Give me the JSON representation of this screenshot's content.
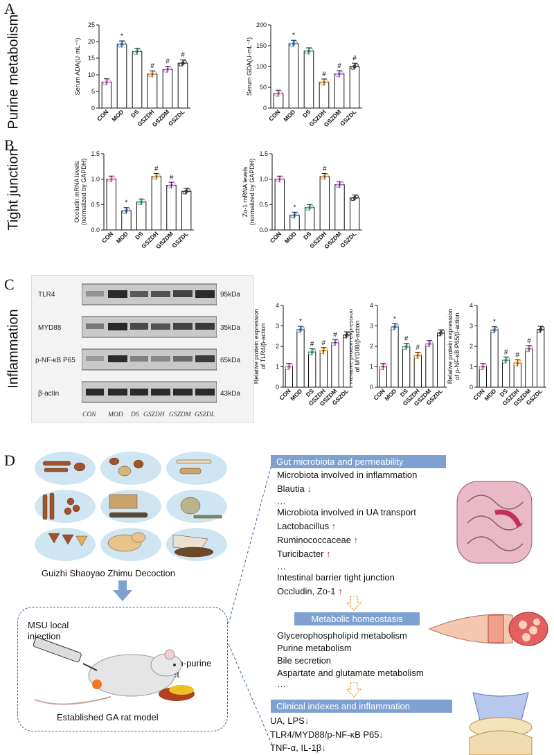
{
  "panels": {
    "A": {
      "letter": "A",
      "section": "Purine metabolism"
    },
    "B": {
      "letter": "B",
      "section": "Tight junction"
    },
    "C": {
      "letter": "C",
      "section": "Inflammation"
    },
    "D": {
      "letter": "D"
    }
  },
  "groups": [
    "CON",
    "MOD",
    "DS",
    "GSZDH",
    "GSZDM",
    "GSZDL"
  ],
  "chart_data": [
    {
      "id": "ada",
      "type": "bar",
      "ylabel": "Serum ADA(U·mL⁻¹)",
      "ylim": [
        0,
        25
      ],
      "ticks": [
        0,
        5,
        10,
        15,
        20,
        25
      ],
      "categories": [
        "CON",
        "MOD",
        "DS",
        "GSZDH",
        "GSZDM",
        "GSZDL"
      ],
      "values": [
        7.8,
        19.2,
        17.0,
        10.2,
        11.6,
        13.5
      ],
      "annotations": [
        "",
        "*",
        "",
        "#",
        "#",
        "#"
      ],
      "colors": [
        "#e880d0",
        "#4a90d9",
        "#4fb59a",
        "#f0a030",
        "#c080e0",
        "#333333"
      ]
    },
    {
      "id": "gda",
      "type": "bar",
      "ylabel": "Serum GDA(U·mL⁻¹)",
      "ylim": [
        0,
        200
      ],
      "ticks": [
        0,
        50,
        100,
        150,
        200
      ],
      "categories": [
        "CON",
        "MOD",
        "DS",
        "GSZDH",
        "GSZDM",
        "GSZDL"
      ],
      "values": [
        35,
        155,
        137,
        62,
        82,
        100
      ],
      "annotations": [
        "",
        "*",
        "",
        "#",
        "#",
        "#"
      ],
      "colors": [
        "#e880d0",
        "#4a90d9",
        "#4fb59a",
        "#f0a030",
        "#c080e0",
        "#333333"
      ]
    },
    {
      "id": "occludin",
      "type": "bar",
      "ylabel": "Occludin mRNA levels",
      "ylabel2": "(normalized by GAPDH)",
      "ylim": [
        0,
        1.5
      ],
      "ticks": [
        0.0,
        0.5,
        1.0,
        1.5
      ],
      "categories": [
        "CON",
        "MOD",
        "DS",
        "GSZDH",
        "GSZDM",
        "GSZDL"
      ],
      "values": [
        1.0,
        0.38,
        0.55,
        1.05,
        0.88,
        0.76
      ],
      "annotations": [
        "",
        "*",
        "",
        "#",
        "#",
        ""
      ],
      "colors": [
        "#e880d0",
        "#4a90d9",
        "#4fb59a",
        "#f0a030",
        "#c080e0",
        "#333333"
      ]
    },
    {
      "id": "zo1",
      "type": "bar",
      "ylabel": "Zo-1 mRNA levels",
      "ylabel2": "(normalized by GAPDH)",
      "ylim": [
        0,
        1.5
      ],
      "ticks": [
        0.0,
        0.5,
        1.0,
        1.5
      ],
      "categories": [
        "CON",
        "MOD",
        "DS",
        "GSZDH",
        "GSZDM",
        "GSZDL"
      ],
      "values": [
        1.0,
        0.29,
        0.44,
        1.05,
        0.89,
        0.63
      ],
      "annotations": [
        "",
        "*",
        "",
        "#",
        "",
        ""
      ],
      "colors": [
        "#e880d0",
        "#4a90d9",
        "#4fb59a",
        "#f0a030",
        "#c080e0",
        "#333333"
      ]
    },
    {
      "id": "tlr4",
      "type": "bar",
      "ylabel": "Relative protein expression",
      "ylabel2": "of TLR4/β-action",
      "ylim": [
        0,
        4
      ],
      "ticks": [
        0,
        1,
        2,
        3,
        4
      ],
      "categories": [
        "CON",
        "MOD",
        "DS",
        "GSZDH",
        "GSZDM",
        "GSZDL"
      ],
      "values": [
        1.0,
        2.82,
        1.72,
        1.78,
        2.18,
        2.55
      ],
      "annotations": [
        "",
        "*",
        "#",
        "#",
        "#",
        ""
      ],
      "colors": [
        "#e880d0",
        "#4a90d9",
        "#4fb59a",
        "#f0a030",
        "#c080e0",
        "#333333"
      ]
    },
    {
      "id": "myd88",
      "type": "bar",
      "ylabel": "Relative protein expression",
      "ylabel2": "of MYD88/β-action",
      "ylim": [
        0,
        4
      ],
      "ticks": [
        0,
        1,
        2,
        3,
        4
      ],
      "categories": [
        "CON",
        "MOD",
        "DS",
        "GSZDH",
        "GSZDM",
        "GSZDL"
      ],
      "values": [
        1.0,
        2.95,
        1.98,
        1.55,
        2.12,
        2.65
      ],
      "annotations": [
        "",
        "*",
        "#",
        "#",
        "",
        ""
      ],
      "colors": [
        "#e880d0",
        "#4a90d9",
        "#4fb59a",
        "#f0a030",
        "#c080e0",
        "#333333"
      ]
    },
    {
      "id": "p65",
      "type": "bar",
      "ylabel": "Relative protein expression",
      "ylabel2": "of p-NF-κB P65/β-action",
      "ylim": [
        0,
        4
      ],
      "ticks": [
        0,
        1,
        2,
        3,
        4
      ],
      "categories": [
        "CON",
        "MOD",
        "DS",
        "GSZDH",
        "GSZDM",
        "GSZDL"
      ],
      "values": [
        1.0,
        2.8,
        1.32,
        1.18,
        1.88,
        2.82
      ],
      "annotations": [
        "",
        "*",
        "#",
        "#",
        "#",
        ""
      ],
      "colors": [
        "#e880d0",
        "#4a90d9",
        "#4fb59a",
        "#f0a030",
        "#c080e0",
        "#333333"
      ]
    }
  ],
  "blot": {
    "proteins": [
      "TLR4",
      "MYD88",
      "p-NF-κB P65",
      "β-actin"
    ],
    "sizes": [
      "95kDa",
      "35kDa",
      "65kDa",
      "43kDa"
    ],
    "lanes": [
      "CON",
      "MOD",
      "DS",
      "GSZDH",
      "GSZDM",
      "GSZDL"
    ]
  },
  "diagram": {
    "decoction": "Guizhi Shaoyao Zhimu Decoction",
    "msu": "MSU local",
    "msu2": "injection",
    "diet": "High-purine",
    "diet2": "diet",
    "model": "Established GA rat model",
    "box1": "Gut microbiota and permeability",
    "box2": "Metabolic homeostasis",
    "box3": "Clinical indexes and inflammation",
    "gut_lines": [
      {
        "text": "Microbiota involved in inflammation",
        "arrow": ""
      },
      {
        "text": "Blautia",
        "arrow": "↓"
      },
      {
        "text": "…",
        "arrow": ""
      },
      {
        "text": "Microbiota involved in UA transport",
        "arrow": ""
      },
      {
        "text": "Lactobacillus",
        "arrow": "↑"
      },
      {
        "text": "Ruminococcaceae",
        "arrow": "↑"
      },
      {
        "text": "Turicibacter",
        "arrow": "↑"
      },
      {
        "text": "…",
        "arrow": ""
      },
      {
        "text": "Intestinal barrier tight junction",
        "arrow": ""
      },
      {
        "text": "Occludin, Zo-1",
        "arrow": "↑"
      }
    ],
    "metab_lines": [
      "Glycerophospholipid metabolism",
      "Purine metabolism",
      "Bile secretion",
      "Aspartate and glutamate metabolism",
      "…"
    ],
    "clinical_lines": [
      {
        "text": "UA, LPS",
        "arrow": "↓"
      },
      {
        "text": "TLR4/MYD88/p-NF-κB P65",
        "arrow": "↓"
      },
      {
        "text": "TNF-α, IL-1β",
        "arrow": "↓"
      }
    ]
  }
}
